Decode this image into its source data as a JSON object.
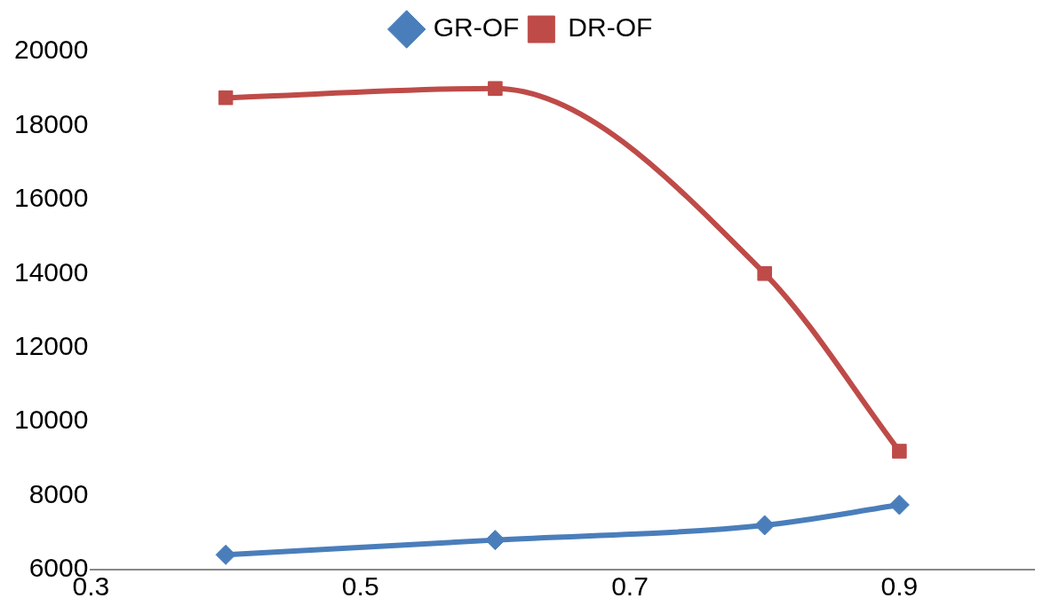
{
  "chart_data": {
    "type": "line",
    "x": [
      0.4,
      0.6,
      0.8,
      0.9
    ],
    "xlim": [
      0.3,
      1.0
    ],
    "xticks": [
      0.3,
      0.5,
      0.7,
      0.9
    ],
    "ylim": [
      6000,
      20000
    ],
    "yticks": [
      6000,
      8000,
      10000,
      12000,
      14000,
      16000,
      18000,
      20000
    ],
    "grid": false,
    "legend": "top",
    "series": [
      {
        "name": "GR-OF",
        "color": "#4a7ebb",
        "marker": "diamond",
        "values": [
          6400,
          6800,
          7200,
          7750
        ]
      },
      {
        "name": "DR-OF",
        "color": "#be4b48",
        "marker": "square",
        "values": [
          18750,
          19000,
          14000,
          9200
        ]
      }
    ]
  }
}
